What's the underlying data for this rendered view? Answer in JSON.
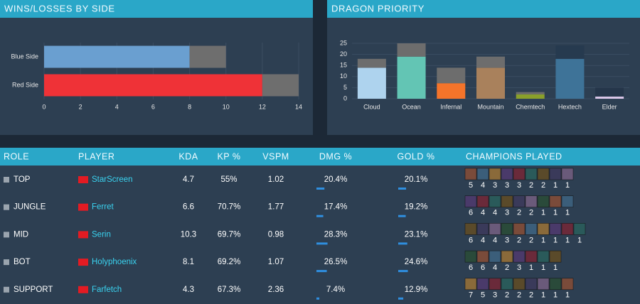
{
  "chart_data": [
    {
      "type": "hbar-stacked",
      "title": "WINS/LOSSES BY SIDE",
      "categories": [
        "Blue Side",
        "Red Side"
      ],
      "series": [
        {
          "colors": [
            "#6a9fd0",
            "#ef3237"
          ],
          "values": [
            8,
            12
          ]
        },
        {
          "color": "#6e6e6e",
          "values": [
            2,
            2
          ]
        }
      ],
      "xlim": [
        0,
        14
      ],
      "xticks": [
        0,
        2,
        4,
        6,
        8,
        10,
        12,
        14
      ],
      "grid": true
    },
    {
      "type": "bar-stacked",
      "title": "DRAGON PRIORITY",
      "categories": [
        "Cloud",
        "Ocean",
        "Infernal",
        "Mountain",
        "Chemtech",
        "Hextech",
        "Elder"
      ],
      "series": [
        {
          "colors": [
            "#aed3ee",
            "#63c5b4",
            "#f5742a",
            "#a9815c",
            "#8aa02a",
            "#3e7398",
            "#d9c6e8"
          ],
          "values": [
            14,
            19,
            7,
            14,
            2,
            18,
            1
          ]
        },
        {
          "colors": [
            "#6d6d6d",
            "#6d6d6d",
            "#6d6d6d",
            "#6d6d6d",
            "#6d6d6d",
            "#263a4f",
            "#25364a"
          ],
          "values": [
            4,
            6,
            7,
            5,
            1,
            6,
            4
          ]
        }
      ],
      "ylim": [
        0,
        25
      ],
      "yticks": [
        0,
        5,
        10,
        15,
        20,
        25
      ],
      "grid": true
    }
  ],
  "table": {
    "columns": [
      "ROLE",
      "PLAYER",
      "KDA",
      "KP %",
      "VSPM",
      "DMG %",
      "GOLD %",
      "CHAMPIONS PLAYED"
    ],
    "bar_color": "#2f8fe0",
    "rows": [
      {
        "role": "TOP",
        "player": "StarScreen",
        "kda": "4.7",
        "kp": "55%",
        "vspm": "1.02",
        "dmg": 20.4,
        "dmg_label": "20.4%",
        "gold": 20.1,
        "gold_label": "20.1%",
        "champions": [
          5,
          4,
          3,
          3,
          3,
          2,
          2,
          1,
          1
        ]
      },
      {
        "role": "JUNGLE",
        "player": "Ferret",
        "kda": "6.6",
        "kp": "70.7%",
        "vspm": "1.77",
        "dmg": 17.4,
        "dmg_label": "17.4%",
        "gold": 19.2,
        "gold_label": "19.2%",
        "champions": [
          6,
          4,
          4,
          3,
          2,
          2,
          1,
          1,
          1
        ]
      },
      {
        "role": "MID",
        "player": "Serin",
        "kda": "10.3",
        "kp": "69.7%",
        "vspm": "0.98",
        "dmg": 28.3,
        "dmg_label": "28.3%",
        "gold": 23.1,
        "gold_label": "23.1%",
        "champions": [
          6,
          4,
          4,
          3,
          2,
          2,
          1,
          1,
          1,
          1
        ]
      },
      {
        "role": "BOT",
        "player": "Holyphoenix",
        "kda": "8.1",
        "kp": "69.2%",
        "vspm": "1.07",
        "dmg": 26.5,
        "dmg_label": "26.5%",
        "gold": 24.6,
        "gold_label": "24.6%",
        "champions": [
          6,
          6,
          4,
          2,
          3,
          1,
          1,
          1
        ]
      },
      {
        "role": "SUPPORT",
        "player": "Farfetch",
        "kda": "4.3",
        "kp": "67.3%",
        "vspm": "2.36",
        "dmg": 7.4,
        "dmg_label": "7.4%",
        "gold": 12.9,
        "gold_label": "12.9%",
        "champions": [
          7,
          5,
          3,
          2,
          2,
          2,
          1,
          1,
          1
        ]
      }
    ]
  }
}
